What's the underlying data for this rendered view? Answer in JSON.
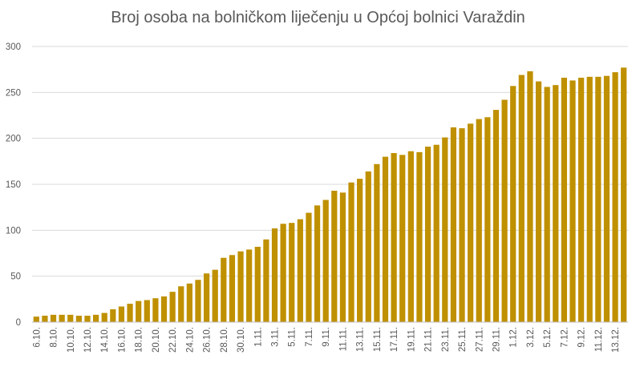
{
  "chart_data": {
    "type": "bar",
    "title": "Broj osoba na bolničkom liječenju u Općoj bolnici Varaždin",
    "xlabel": "",
    "ylabel": "",
    "ylim": [
      0,
      300
    ],
    "yticks": [
      0,
      50,
      100,
      150,
      200,
      250,
      300
    ],
    "grid": true,
    "legend": "none",
    "bar_color": "#BF9000",
    "categories": [
      "6.10.",
      "7.10.",
      "8.10.",
      "9.10.",
      "10.10.",
      "11.10.",
      "12.10.",
      "13.10.",
      "14.10.",
      "15.10.",
      "16.10.",
      "17.10.",
      "18.10.",
      "19.10.",
      "20.10.",
      "21.10.",
      "22.10.",
      "23.10.",
      "24.10.",
      "25.10.",
      "26.10.",
      "27.10.",
      "28.10.",
      "29.10.",
      "30.10.",
      "31.10.",
      "1.11.",
      "2.11.",
      "3.11.",
      "4.11.",
      "5.11.",
      "6.11.",
      "7.11.",
      "8.11.",
      "9.11.",
      "10.11.",
      "11.11.",
      "12.11.",
      "13.11.",
      "14.11.",
      "15.11.",
      "16.11.",
      "17.11.",
      "18.11.",
      "19.11.",
      "20.11.",
      "21.11.",
      "22.11.",
      "23.11.",
      "24.11.",
      "25.11.",
      "26.11.",
      "27.11.",
      "28.11.",
      "29.11.",
      "30.11.",
      "1.12.",
      "2.12.",
      "3.12.",
      "4.12.",
      "5.12.",
      "6.12.",
      "7.12.",
      "8.12.",
      "9.12.",
      "10.12.",
      "11.12.",
      "12.12.",
      "13.12.",
      "14.12."
    ],
    "shown_tick_labels": [
      "6.10.",
      "8.10.",
      "10.10.",
      "12.10.",
      "14.10.",
      "16.10.",
      "18.10.",
      "20.10.",
      "22.10.",
      "24.10.",
      "26.10.",
      "28.10.",
      "30.10.",
      "1.11.",
      "3.11.",
      "5.11.",
      "7.11.",
      "9.11.",
      "11.11.",
      "13.11.",
      "15.11.",
      "17.11.",
      "19.11.",
      "21.11.",
      "23.11.",
      "25.11.",
      "27.11.",
      "29.11.",
      "1.12.",
      "3.12.",
      "5.12.",
      "7.12.",
      "9.12.",
      "11.12.",
      "13.12."
    ],
    "values": [
      6,
      7,
      8,
      8,
      8,
      7,
      7,
      8,
      10,
      14,
      17,
      20,
      23,
      24,
      26,
      28,
      33,
      39,
      42,
      46,
      53,
      57,
      70,
      73,
      77,
      79,
      82,
      90,
      102,
      107,
      108,
      112,
      119,
      127,
      133,
      143,
      141,
      152,
      156,
      164,
      172,
      180,
      184,
      182,
      186,
      185,
      191,
      193,
      201,
      212,
      211,
      216,
      221,
      223,
      231,
      242,
      257,
      269,
      273,
      262,
      256,
      258,
      266,
      263,
      266,
      267,
      267,
      268,
      272,
      277
    ]
  }
}
